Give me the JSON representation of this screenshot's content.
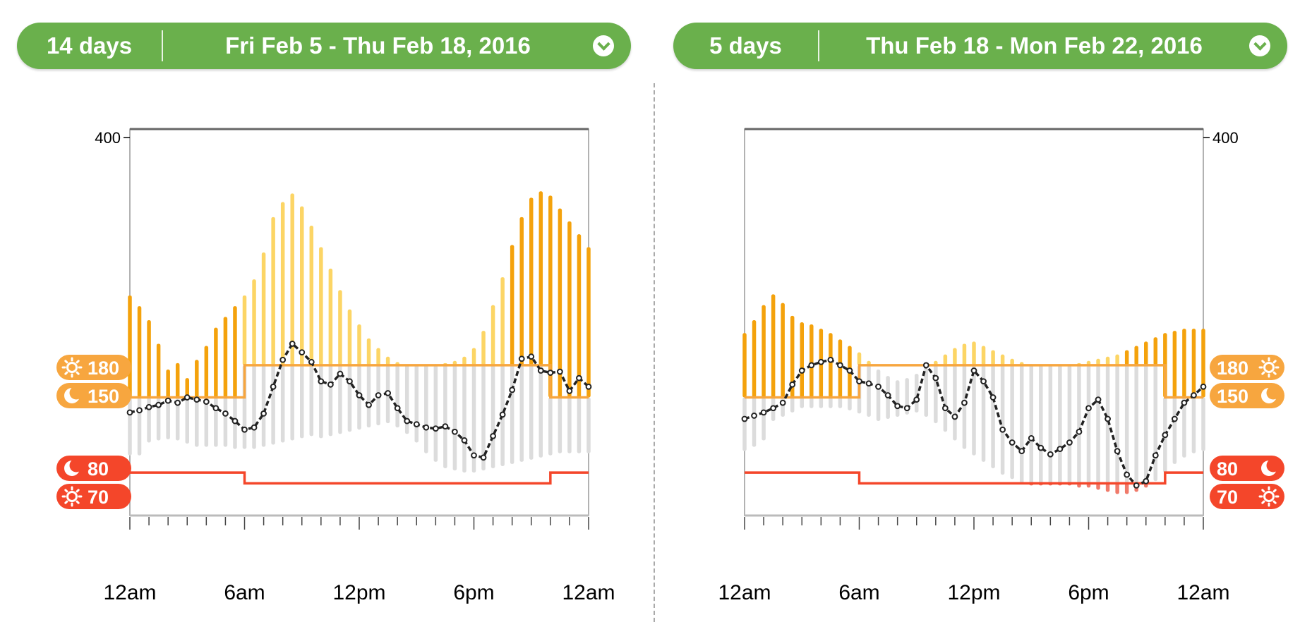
{
  "headers": [
    {
      "days": "14 days",
      "range": "Fri Feb 5 - Thu Feb 18, 2016"
    },
    {
      "days": "5 days",
      "range": "Thu Feb 18 - Mon Feb 22, 2016"
    }
  ],
  "colors": {
    "header_green": "#6ab04c",
    "high_dark_orange": "#f4a20c",
    "high_light_yellow": "#fcd565",
    "in_range_gray": "#dcdcdc",
    "low_red": "#f07a6a",
    "target_orange": "#f7a63f",
    "alarm_red": "#f4462a",
    "median_line": "#222222"
  },
  "chart_data": [
    {
      "type": "bar",
      "x_unit": "hour of day",
      "y_unit": "mg/dL",
      "xlim": [
        0,
        24
      ],
      "ylim": [
        40,
        400
      ],
      "y_ticks": [
        {
          "value": 400,
          "label": "400"
        }
      ],
      "x_ticks": [
        {
          "value": 0,
          "label": "12am"
        },
        {
          "value": 6,
          "label": "6am"
        },
        {
          "value": 12,
          "label": "12pm"
        },
        {
          "value": 18,
          "label": "6pm"
        },
        {
          "value": 24,
          "label": "12am"
        }
      ],
      "thresholds": {
        "high": [
          {
            "label": "180",
            "value": 180,
            "icon": "sun-icon"
          },
          {
            "label": "150",
            "value": 150,
            "icon": "moon-icon"
          }
        ],
        "low": [
          {
            "label": "80",
            "value": 80,
            "icon": "moon-icon"
          },
          {
            "label": "70",
            "value": 70,
            "icon": "sun-icon"
          }
        ]
      },
      "day_start": 6,
      "day_end": 22,
      "median": [
        [
          0,
          136
        ],
        [
          0.5,
          138
        ],
        [
          1,
          141
        ],
        [
          1.5,
          143
        ],
        [
          2,
          147
        ],
        [
          2.5,
          145
        ],
        [
          3,
          150
        ],
        [
          3.5,
          148
        ],
        [
          4,
          146
        ],
        [
          4.5,
          140
        ],
        [
          5,
          135
        ],
        [
          5.5,
          128
        ],
        [
          6,
          120
        ],
        [
          6.5,
          122
        ],
        [
          7,
          135
        ],
        [
          7.5,
          160
        ],
        [
          8,
          185
        ],
        [
          8.5,
          200
        ],
        [
          9,
          192
        ],
        [
          9.5,
          183
        ],
        [
          10,
          165
        ],
        [
          10.5,
          162
        ],
        [
          11,
          172
        ],
        [
          11.5,
          165
        ],
        [
          12,
          152
        ],
        [
          12.5,
          143
        ],
        [
          13,
          152
        ],
        [
          13.5,
          154
        ],
        [
          14,
          140
        ],
        [
          14.5,
          128
        ],
        [
          15,
          125
        ],
        [
          15.5,
          122
        ],
        [
          16,
          121
        ],
        [
          16.5,
          123
        ],
        [
          17,
          118
        ],
        [
          17.5,
          110
        ],
        [
          18,
          96
        ],
        [
          18.5,
          94
        ],
        [
          19,
          114
        ],
        [
          19.5,
          134
        ],
        [
          20,
          157
        ],
        [
          20.5,
          186
        ],
        [
          21,
          188
        ],
        [
          21.5,
          175
        ],
        [
          22,
          173
        ],
        [
          22.5,
          174
        ],
        [
          23,
          156
        ],
        [
          23.5,
          168
        ],
        [
          24,
          160
        ]
      ],
      "bars": [
        {
          "x": 0,
          "low": 96,
          "high": 245
        },
        {
          "x": 0.5,
          "low": 96,
          "high": 235
        },
        {
          "x": 1,
          "low": 108,
          "high": 222
        },
        {
          "x": 1.5,
          "low": 110,
          "high": 200
        },
        {
          "x": 2,
          "low": 111,
          "high": 176
        },
        {
          "x": 2.5,
          "low": 110,
          "high": 182
        },
        {
          "x": 3,
          "low": 107,
          "high": 168
        },
        {
          "x": 3.5,
          "low": 104,
          "high": 185
        },
        {
          "x": 4,
          "low": 104,
          "high": 198
        },
        {
          "x": 4.5,
          "low": 104,
          "high": 215
        },
        {
          "x": 5,
          "low": 104,
          "high": 225
        },
        {
          "x": 5.5,
          "low": 102,
          "high": 235
        },
        {
          "x": 6,
          "low": 102,
          "high": 245
        },
        {
          "x": 6.5,
          "low": 102,
          "high": 260
        },
        {
          "x": 7,
          "low": 104,
          "high": 285
        },
        {
          "x": 7.5,
          "low": 106,
          "high": 318
        },
        {
          "x": 8,
          "low": 108,
          "high": 332
        },
        {
          "x": 8.5,
          "low": 110,
          "high": 340
        },
        {
          "x": 9,
          "low": 112,
          "high": 328
        },
        {
          "x": 9.5,
          "low": 114,
          "high": 310
        },
        {
          "x": 10,
          "low": 112,
          "high": 290
        },
        {
          "x": 10.5,
          "low": 114,
          "high": 270
        },
        {
          "x": 11,
          "low": 116,
          "high": 250
        },
        {
          "x": 11.5,
          "low": 118,
          "high": 232
        },
        {
          "x": 12,
          "low": 120,
          "high": 218
        },
        {
          "x": 12.5,
          "low": 122,
          "high": 205
        },
        {
          "x": 13,
          "low": 124,
          "high": 196
        },
        {
          "x": 13.5,
          "low": 126,
          "high": 188
        },
        {
          "x": 14,
          "low": 122,
          "high": 183
        },
        {
          "x": 14.5,
          "low": 116,
          "high": 181
        },
        {
          "x": 15,
          "low": 108,
          "high": 180
        },
        {
          "x": 15.5,
          "low": 98,
          "high": 180
        },
        {
          "x": 16,
          "low": 90,
          "high": 181
        },
        {
          "x": 16.5,
          "low": 84,
          "high": 182
        },
        {
          "x": 17,
          "low": 82,
          "high": 184
        },
        {
          "x": 17.5,
          "low": 80,
          "high": 188
        },
        {
          "x": 18,
          "low": 80,
          "high": 196
        },
        {
          "x": 18.5,
          "low": 82,
          "high": 212
        },
        {
          "x": 19,
          "low": 84,
          "high": 236
        },
        {
          "x": 19.5,
          "low": 86,
          "high": 262
        },
        {
          "x": 20,
          "low": 88,
          "high": 292
        },
        {
          "x": 20.5,
          "low": 90,
          "high": 318
        },
        {
          "x": 21,
          "low": 92,
          "high": 336
        },
        {
          "x": 21.5,
          "low": 94,
          "high": 342
        },
        {
          "x": 22,
          "low": 96,
          "high": 338
        },
        {
          "x": 22.5,
          "low": 98,
          "high": 326
        },
        {
          "x": 23,
          "low": 98,
          "high": 314
        },
        {
          "x": 23.5,
          "low": 98,
          "high": 302
        },
        {
          "x": 24,
          "low": 98,
          "high": 290
        }
      ]
    },
    {
      "type": "bar",
      "x_unit": "hour of day",
      "y_unit": "mg/dL",
      "xlim": [
        0,
        24
      ],
      "ylim": [
        40,
        400
      ],
      "y_ticks": [
        {
          "value": 400,
          "label": "400"
        }
      ],
      "x_ticks": [
        {
          "value": 0,
          "label": "12am"
        },
        {
          "value": 6,
          "label": "6am"
        },
        {
          "value": 12,
          "label": "12pm"
        },
        {
          "value": 18,
          "label": "6pm"
        },
        {
          "value": 24,
          "label": "12am"
        }
      ],
      "thresholds": {
        "high": [
          {
            "label": "180",
            "value": 180,
            "icon": "sun-icon"
          },
          {
            "label": "150",
            "value": 150,
            "icon": "moon-icon"
          }
        ],
        "low": [
          {
            "label": "80",
            "value": 80,
            "icon": "moon-icon"
          },
          {
            "label": "70",
            "value": 70,
            "icon": "sun-icon"
          }
        ]
      },
      "day_start": 6,
      "day_end": 22,
      "median": [
        [
          0,
          130
        ],
        [
          0.5,
          133
        ],
        [
          1,
          136
        ],
        [
          1.5,
          140
        ],
        [
          2,
          145
        ],
        [
          2.5,
          162
        ],
        [
          3,
          175
        ],
        [
          3.5,
          180
        ],
        [
          4,
          183
        ],
        [
          4.5,
          185
        ],
        [
          5,
          180
        ],
        [
          5.5,
          175
        ],
        [
          6,
          165
        ],
        [
          6.5,
          163
        ],
        [
          7,
          160
        ],
        [
          7.5,
          152
        ],
        [
          8,
          142
        ],
        [
          8.5,
          140
        ],
        [
          9,
          148
        ],
        [
          9.5,
          180
        ],
        [
          10,
          168
        ],
        [
          10.5,
          140
        ],
        [
          11,
          132
        ],
        [
          11.5,
          145
        ],
        [
          12,
          175
        ],
        [
          12.5,
          165
        ],
        [
          13,
          150
        ],
        [
          13.5,
          120
        ],
        [
          14,
          108
        ],
        [
          14.5,
          100
        ],
        [
          15,
          112
        ],
        [
          15.5,
          103
        ],
        [
          16,
          97
        ],
        [
          16.5,
          102
        ],
        [
          17,
          108
        ],
        [
          17.5,
          118
        ],
        [
          18,
          140
        ],
        [
          18.5,
          148
        ],
        [
          19,
          130
        ],
        [
          19.5,
          100
        ],
        [
          20,
          78
        ],
        [
          20.5,
          68
        ],
        [
          21,
          72
        ],
        [
          21.5,
          96
        ],
        [
          22,
          115
        ],
        [
          22.5,
          130
        ],
        [
          23,
          145
        ],
        [
          23.5,
          152
        ],
        [
          24,
          160
        ]
      ],
      "bars": [
        {
          "x": 0,
          "low": 100,
          "high": 210
        },
        {
          "x": 0.5,
          "low": 104,
          "high": 222
        },
        {
          "x": 1,
          "low": 110,
          "high": 236
        },
        {
          "x": 1.5,
          "low": 128,
          "high": 246
        },
        {
          "x": 2,
          "low": 132,
          "high": 238
        },
        {
          "x": 2.5,
          "low": 136,
          "high": 226
        },
        {
          "x": 3,
          "low": 140,
          "high": 220
        },
        {
          "x": 3.5,
          "low": 140,
          "high": 218
        },
        {
          "x": 4,
          "low": 140,
          "high": 214
        },
        {
          "x": 4.5,
          "low": 140,
          "high": 210
        },
        {
          "x": 5,
          "low": 140,
          "high": 204
        },
        {
          "x": 5.5,
          "low": 138,
          "high": 198
        },
        {
          "x": 6,
          "low": 135,
          "high": 192
        },
        {
          "x": 6.5,
          "low": 132,
          "high": 184
        },
        {
          "x": 7,
          "low": 128,
          "high": 176
        },
        {
          "x": 7.5,
          "low": 130,
          "high": 170
        },
        {
          "x": 8,
          "low": 132,
          "high": 166
        },
        {
          "x": 8.5,
          "low": 134,
          "high": 168
        },
        {
          "x": 9,
          "low": 136,
          "high": 172
        },
        {
          "x": 9.5,
          "low": 132,
          "high": 178
        },
        {
          "x": 10,
          "low": 126,
          "high": 184
        },
        {
          "x": 10.5,
          "low": 118,
          "high": 190
        },
        {
          "x": 11,
          "low": 110,
          "high": 196
        },
        {
          "x": 11.5,
          "low": 102,
          "high": 200
        },
        {
          "x": 12,
          "low": 96,
          "high": 202
        },
        {
          "x": 12.5,
          "low": 90,
          "high": 198
        },
        {
          "x": 13,
          "low": 84,
          "high": 194
        },
        {
          "x": 13.5,
          "low": 78,
          "high": 190
        },
        {
          "x": 14,
          "low": 74,
          "high": 186
        },
        {
          "x": 14.5,
          "low": 70,
          "high": 183
        },
        {
          "x": 15,
          "low": 68,
          "high": 181
        },
        {
          "x": 15.5,
          "low": 68,
          "high": 180
        },
        {
          "x": 16,
          "low": 68,
          "high": 180
        },
        {
          "x": 16.5,
          "low": 68,
          "high": 180
        },
        {
          "x": 17,
          "low": 68,
          "high": 181
        },
        {
          "x": 17.5,
          "low": 66,
          "high": 182
        },
        {
          "x": 18,
          "low": 66,
          "high": 184
        },
        {
          "x": 18.5,
          "low": 64,
          "high": 186
        },
        {
          "x": 19,
          "low": 62,
          "high": 188
        },
        {
          "x": 19.5,
          "low": 60,
          "high": 190
        },
        {
          "x": 20,
          "low": 60,
          "high": 194
        },
        {
          "x": 20.5,
          "low": 62,
          "high": 198
        },
        {
          "x": 21,
          "low": 66,
          "high": 202
        },
        {
          "x": 21.5,
          "low": 72,
          "high": 206
        },
        {
          "x": 22,
          "low": 80,
          "high": 210
        },
        {
          "x": 22.5,
          "low": 88,
          "high": 212
        },
        {
          "x": 23,
          "low": 94,
          "high": 214
        },
        {
          "x": 23.5,
          "low": 98,
          "high": 214
        },
        {
          "x": 24,
          "low": 100,
          "high": 214
        }
      ]
    }
  ]
}
